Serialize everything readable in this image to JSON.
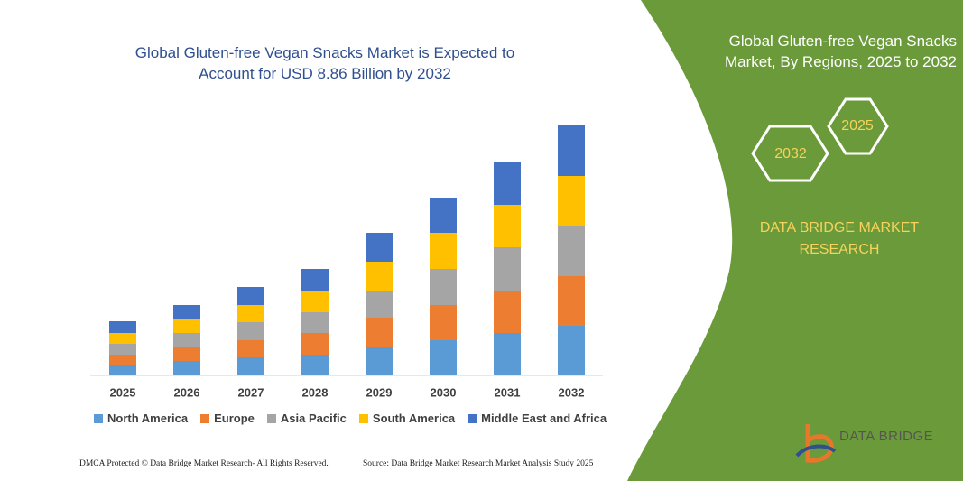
{
  "chart_data": {
    "type": "bar",
    "stacked": true,
    "title": "Global Gluten-free Vegan Snacks Market is Expected to Account for USD 8.86 Billion by 2032",
    "categories": [
      "2025",
      "2026",
      "2027",
      "2028",
      "2029",
      "2030",
      "2031",
      "2032"
    ],
    "series": [
      {
        "name": "North America",
        "color": "#5b9bd5",
        "values": [
          11,
          16,
          20,
          23,
          32,
          39,
          47,
          55
        ]
      },
      {
        "name": "Europe",
        "color": "#ed7d31",
        "values": [
          12,
          15,
          19,
          24,
          32,
          39,
          47,
          55
        ]
      },
      {
        "name": "Asia Pacific",
        "color": "#a5a5a5",
        "values": [
          12,
          16,
          20,
          23,
          30,
          40,
          48,
          56
        ]
      },
      {
        "name": "South America",
        "color": "#ffc000",
        "values": [
          12,
          16,
          19,
          24,
          32,
          40,
          47,
          55
        ]
      },
      {
        "name": "Middle East and Africa",
        "color": "#4472c4",
        "values": [
          13,
          15,
          20,
          24,
          32,
          39,
          48,
          56
        ]
      }
    ]
  },
  "panel": {
    "title": "Global Gluten-free Vegan Snacks Market, By Regions, 2025 to 2032",
    "hex_start": "2025",
    "hex_end": "2032",
    "brand": "DATA BRIDGE MARKET RESEARCH"
  },
  "footer": {
    "dmca": "DMCA Protected © Data Bridge Market Research- All Rights Reserved.",
    "source": "Source: Data Bridge Market Research Market Analysis Study 2025"
  },
  "logo": "DATA BRIDGE"
}
